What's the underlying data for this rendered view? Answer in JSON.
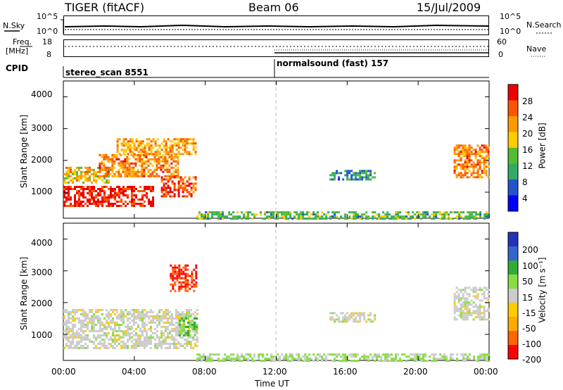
{
  "header": {
    "radar": "TIGER (fitACF)",
    "beam": "Beam 06",
    "date": "15/Jul/2009"
  },
  "sky_panel": {
    "left_label": "N.Sky",
    "right_label": "N.Search",
    "left_ticks": [
      "10^5",
      "10^0"
    ],
    "right_ticks": [
      "10^5",
      "10^0"
    ]
  },
  "freq_panel": {
    "left_label_line1": "Freq.",
    "left_label_line2": "[MHz]",
    "right_label": "Nave",
    "left_ticks": [
      "18",
      "8"
    ],
    "right_ticks": [
      "60",
      "0"
    ]
  },
  "cpid": {
    "label": "CPID",
    "modes": [
      {
        "name": "stereo_scan 8551",
        "start_hour": 0
      },
      {
        "name": "normalsound (fast) 157",
        "start_hour": 12
      }
    ]
  },
  "x_axis": {
    "label": "Time UT",
    "ticks": [
      "00:00",
      "04:00",
      "08:00",
      "12:00",
      "16:00",
      "20:00",
      "00:00"
    ]
  },
  "y_axis": {
    "label": "Slant Range [km]",
    "ticks": [
      "4000",
      "3000",
      "2000",
      "1000"
    ]
  },
  "power_colorbar": {
    "label": "Power [dB]",
    "ticks": [
      "28",
      "24",
      "20",
      "16",
      "12",
      "8",
      "4"
    ],
    "colors": [
      "#0000ff",
      "#2255cc",
      "#33aa66",
      "#55bb33",
      "#ffcc00",
      "#ff9900",
      "#ff5500",
      "#ee0000"
    ]
  },
  "velocity_colorbar": {
    "label": "Velocity [m s⁻¹]",
    "ticks": [
      "200",
      "100",
      "50",
      "15",
      "-15",
      "-50",
      "-100",
      "-200"
    ],
    "colors": [
      "#2233bb",
      "#3366cc",
      "#33aa33",
      "#88dd44",
      "#cccccc",
      "#ffcc00",
      "#ffaa00",
      "#ff6600",
      "#ff0000"
    ]
  },
  "chart_data": [
    {
      "type": "heatmap",
      "title": "Beam 06",
      "quantity": "Power",
      "units": "dB",
      "xlabel": "Time UT",
      "ylabel": "Slant Range [km]",
      "xlim": [
        0,
        24
      ],
      "ylim": [
        180,
        4500
      ],
      "color_scale": [
        0,
        30
      ],
      "regions": [
        {
          "t_start": 0.0,
          "t_end": 5.0,
          "range_low": 600,
          "range_high": 1200,
          "power_db": 28
        },
        {
          "t_start": 0.0,
          "t_end": 2.5,
          "range_low": 1300,
          "range_high": 1800,
          "power_db": 18
        },
        {
          "t_start": 2.0,
          "t_end": 6.5,
          "range_low": 1500,
          "range_high": 2200,
          "power_db": 22
        },
        {
          "t_start": 3.0,
          "t_end": 7.5,
          "range_low": 2200,
          "range_high": 2700,
          "power_db": 20
        },
        {
          "t_start": 5.5,
          "t_end": 7.5,
          "range_low": 900,
          "range_high": 1500,
          "power_db": 26
        },
        {
          "t_start": 7.5,
          "t_end": 24.0,
          "range_low": 200,
          "range_high": 400,
          "power_db": 12
        },
        {
          "t_start": 15.0,
          "t_end": 17.5,
          "range_low": 1400,
          "range_high": 1700,
          "power_db": 8
        },
        {
          "t_start": 22.0,
          "t_end": 24.0,
          "range_low": 1500,
          "range_high": 2500,
          "power_db": 22
        }
      ]
    },
    {
      "type": "heatmap",
      "title": "Beam 06",
      "quantity": "Velocity",
      "units": "m s^-1",
      "xlabel": "Time UT",
      "ylabel": "Slant Range [km]",
      "xlim": [
        0,
        24
      ],
      "ylim": [
        180,
        4500
      ],
      "color_scale": [
        -200,
        200
      ],
      "regions": [
        {
          "t_start": 0.0,
          "t_end": 7.5,
          "range_low": 600,
          "range_high": 1800,
          "velocity": 0
        },
        {
          "t_start": 6.0,
          "t_end": 7.5,
          "range_low": 2400,
          "range_high": 3200,
          "velocity": -200
        },
        {
          "t_start": 6.5,
          "t_end": 7.5,
          "range_low": 1000,
          "range_high": 1600,
          "velocity": 50
        },
        {
          "t_start": 7.5,
          "t_end": 24.0,
          "range_low": 200,
          "range_high": 400,
          "velocity": 20
        },
        {
          "t_start": 15.0,
          "t_end": 17.5,
          "range_low": 1400,
          "range_high": 1700,
          "velocity": 0
        },
        {
          "t_start": 22.0,
          "t_end": 24.0,
          "range_low": 1500,
          "range_high": 2500,
          "velocity": 0
        }
      ]
    }
  ]
}
